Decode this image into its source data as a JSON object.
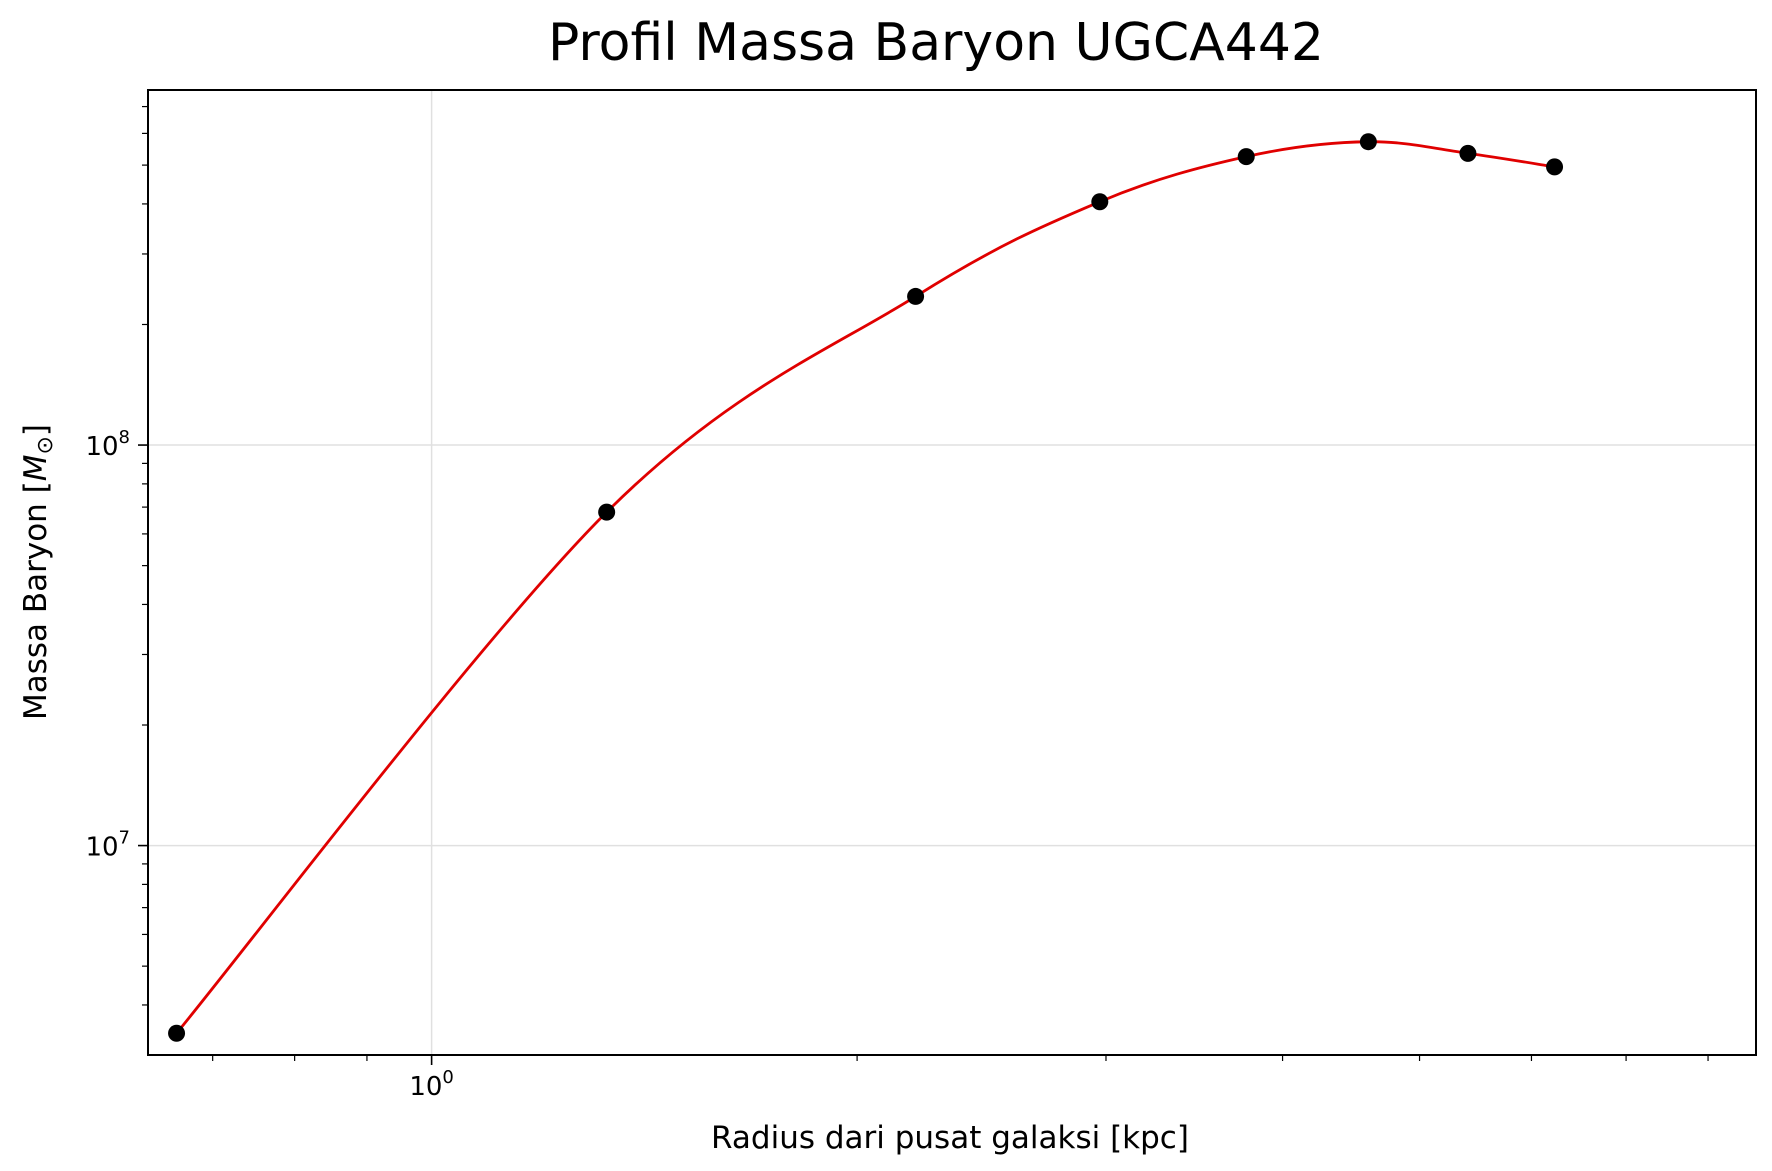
{
  "chart_data": {
    "type": "scatter",
    "title": "Profil Massa Baryon UGCA442",
    "xlabel": "Radius dari pusat galaksi [kpc]",
    "ylabel_text": "Massa Baryon [",
    "ylabel_symbol": "M",
    "ylabel_subscript": "⊙",
    "ylabel_close": "]",
    "xscale": "log",
    "yscale": "log",
    "xlim": [
      0.63,
      8.65
    ],
    "ylim": [
      3000000.0,
      770000000.0
    ],
    "grid": true,
    "x_ticks": [
      {
        "value": 1,
        "base": "10",
        "exp": "0"
      }
    ],
    "y_ticks": [
      {
        "value": 10000000,
        "base": "10",
        "exp": "7"
      },
      {
        "value": 100000000,
        "base": "10",
        "exp": "8"
      }
    ],
    "series": [
      {
        "kind": "points",
        "color": "#000000",
        "x": [
          0.66,
          1.33,
          2.2,
          2.97,
          3.77,
          4.6,
          5.41,
          6.23
        ],
        "y": [
          3400000.0,
          68000000.0,
          235000000.0,
          405000000.0,
          525000000.0,
          572000000.0,
          535000000.0,
          495000000.0
        ]
      },
      {
        "kind": "curve",
        "color": "#e00000",
        "x": [
          0.66,
          1.33,
          2.2,
          2.97,
          3.77,
          4.6,
          5.41,
          6.23
        ],
        "y": [
          3400000.0,
          68000000.0,
          235000000.0,
          405000000.0,
          525000000.0,
          572000000.0,
          535000000.0,
          495000000.0
        ]
      }
    ]
  }
}
